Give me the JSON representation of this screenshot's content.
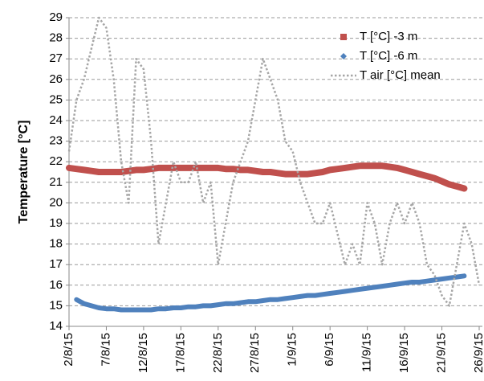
{
  "chart_data": {
    "type": "line",
    "y_label": "Temperature [°C]",
    "categories": [
      "2/8/15",
      null,
      null,
      null,
      null,
      "7/8/15",
      null,
      null,
      null,
      null,
      "12/8/15",
      null,
      null,
      null,
      null,
      "17/8/15",
      null,
      null,
      null,
      null,
      "22/8/15",
      null,
      null,
      null,
      null,
      "27/8/15",
      null,
      null,
      null,
      null,
      "1/9/15",
      null,
      null,
      null,
      null,
      "6/9/15",
      null,
      null,
      null,
      null,
      "11/9/15",
      null,
      null,
      null,
      null,
      "16/9/15",
      null,
      null,
      null,
      null,
      "21/9/15",
      null,
      null,
      null,
      null,
      "26/9/15"
    ],
    "ylim": [
      14,
      29
    ],
    "yticks": [
      14,
      15,
      16,
      17,
      18,
      19,
      20,
      21,
      22,
      23,
      24,
      25,
      26,
      27,
      28,
      29
    ],
    "grid": true,
    "legend": "upper right",
    "series": [
      {
        "name": "T [°C] -3 m",
        "color": "#c0504d",
        "marker": "square",
        "style": "solid",
        "values": [
          21.7,
          21.65,
          21.6,
          21.55,
          21.5,
          21.5,
          21.5,
          21.5,
          21.55,
          21.6,
          21.6,
          21.65,
          21.7,
          21.7,
          21.7,
          21.7,
          21.7,
          21.7,
          21.7,
          21.7,
          21.7,
          21.65,
          21.65,
          21.6,
          21.6,
          21.55,
          21.5,
          21.5,
          21.45,
          21.4,
          21.4,
          21.4,
          21.4,
          21.45,
          21.5,
          21.6,
          21.65,
          21.7,
          21.75,
          21.8,
          21.8,
          21.8,
          21.8,
          21.75,
          21.7,
          21.6,
          21.5,
          21.4,
          21.3,
          21.2,
          21.05,
          20.9,
          20.8,
          20.7,
          null,
          null
        ]
      },
      {
        "name": "T [°C] -6 m",
        "color": "#4f81bd",
        "marker": "diamond",
        "style": "solid",
        "values": [
          null,
          15.3,
          15.1,
          15.0,
          14.9,
          14.85,
          14.85,
          14.8,
          14.8,
          14.8,
          14.8,
          14.8,
          14.85,
          14.85,
          14.9,
          14.9,
          14.95,
          14.95,
          15.0,
          15.0,
          15.05,
          15.1,
          15.1,
          15.15,
          15.2,
          15.2,
          15.25,
          15.3,
          15.3,
          15.35,
          15.4,
          15.45,
          15.5,
          15.5,
          15.55,
          15.6,
          15.65,
          15.7,
          15.75,
          15.8,
          15.85,
          15.9,
          15.95,
          16.0,
          16.05,
          16.1,
          16.15,
          16.15,
          16.2,
          16.25,
          16.3,
          16.35,
          16.4,
          16.45,
          null,
          null
        ]
      },
      {
        "name": "T air [°C] mean",
        "color": "#a6a6a6",
        "marker": "none",
        "style": "dotted",
        "values": [
          22.5,
          25,
          26,
          27.5,
          29,
          28.5,
          26,
          22,
          20,
          27,
          26.5,
          23,
          18,
          20,
          22,
          21,
          21,
          22,
          20,
          21,
          17,
          19,
          21,
          22,
          23,
          25,
          27,
          26,
          25,
          23,
          22.5,
          21,
          20,
          19,
          19,
          20,
          18.5,
          17,
          18,
          17,
          20,
          19,
          17,
          19,
          20,
          19,
          20,
          19,
          17,
          16.5,
          15.5,
          15,
          17,
          19,
          18,
          16
        ]
      }
    ]
  }
}
